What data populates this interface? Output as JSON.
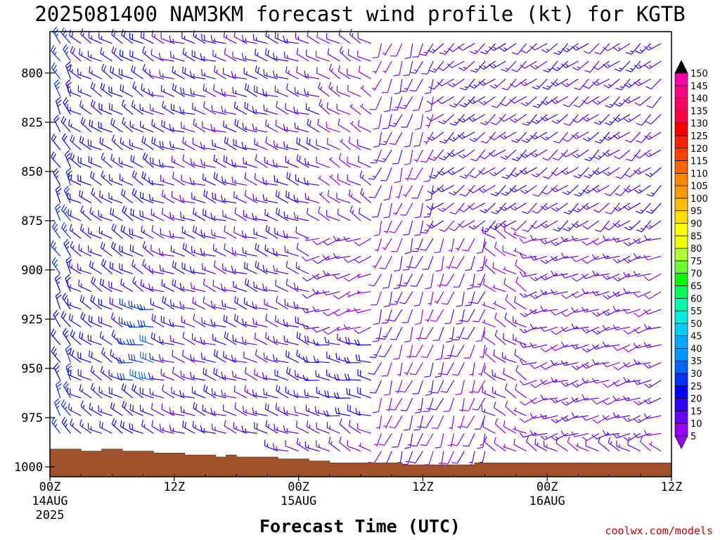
{
  "chart_data": {
    "type": "wind-barb",
    "title": "2025081400 NAM3KM forecast wind profile (kt) for KGTB",
    "xlabel": "Forecast Time (UTC)",
    "credit": "coolwx.com/models",
    "x_ticks": [
      {
        "hour": 0,
        "label": "00Z",
        "date": "14AUG",
        "year": "2025"
      },
      {
        "hour": 12,
        "label": "12Z",
        "date": "",
        "year": ""
      },
      {
        "hour": 24,
        "label": "00Z",
        "date": "15AUG",
        "year": ""
      },
      {
        "hour": 36,
        "label": "12Z",
        "date": "",
        "year": ""
      },
      {
        "hour": 48,
        "label": "00Z",
        "date": "16AUG",
        "year": ""
      },
      {
        "hour": 60,
        "label": "12Z",
        "date": "",
        "year": ""
      }
    ],
    "y_ticks": [
      {
        "value": 800,
        "label": "800"
      },
      {
        "value": 825,
        "label": "825"
      },
      {
        "value": 850,
        "label": "850"
      },
      {
        "value": 875,
        "label": "875"
      },
      {
        "value": 900,
        "label": "900"
      },
      {
        "value": 925,
        "label": "925"
      },
      {
        "value": 950,
        "label": "950"
      },
      {
        "value": 975,
        "label": "975"
      },
      {
        "value": 1000,
        "label": "1000"
      }
    ],
    "xlim": [
      0,
      60
    ],
    "ylim": [
      779,
      1005
    ],
    "y_axis": "pressure (mb), decreasing upward",
    "colorbar": {
      "unit": "kt",
      "values": [
        5,
        10,
        15,
        20,
        25,
        30,
        35,
        40,
        45,
        50,
        55,
        60,
        65,
        70,
        75,
        80,
        85,
        90,
        95,
        100,
        105,
        110,
        115,
        120,
        125,
        130,
        135,
        140,
        145,
        150
      ],
      "labels": [
        "5",
        "10",
        "15",
        "20",
        "25",
        "30",
        "35",
        "40",
        "45",
        "50",
        "55",
        "60",
        "65",
        "70",
        "75",
        "80",
        "85",
        "90",
        "95",
        "100",
        "105",
        "110",
        "115",
        "120",
        "125",
        "130",
        "135",
        "140",
        "145",
        "150"
      ],
      "colors": [
        "#9900ff",
        "#6600ff",
        "#3300ff",
        "#0000ff",
        "#0033ff",
        "#0066ff",
        "#0099ff",
        "#00aaff",
        "#00ccff",
        "#00eedd",
        "#00ffaa",
        "#00ff55",
        "#00ff00",
        "#66ff33",
        "#aaff33",
        "#eeff00",
        "#ffff00",
        "#ffdd00",
        "#ffbb00",
        "#ff9900",
        "#ff8800",
        "#ff6600",
        "#ff4400",
        "#ff2200",
        "#ff0000",
        "#ff0044",
        "#ff0066",
        "#ff0088",
        "#ff00aa",
        "#ff00cc"
      ]
    },
    "time_step_hours": 1,
    "levels_mb": [
      785,
      794,
      803,
      812,
      821,
      830,
      839,
      848,
      857,
      866,
      875,
      884,
      893,
      902,
      911,
      920,
      929,
      938,
      947,
      956,
      965,
      974,
      983,
      992
    ],
    "surface_pressure_mb": [
      {
        "hour": 0,
        "mb": 991
      },
      {
        "hour": 3,
        "mb": 992
      },
      {
        "hour": 5,
        "mb": 991
      },
      {
        "hour": 7,
        "mb": 992
      },
      {
        "hour": 10,
        "mb": 993
      },
      {
        "hour": 13,
        "mb": 994
      },
      {
        "hour": 16,
        "mb": 995
      },
      {
        "hour": 17,
        "mb": 994
      },
      {
        "hour": 18,
        "mb": 995
      },
      {
        "hour": 22,
        "mb": 996
      },
      {
        "hour": 25,
        "mb": 997
      },
      {
        "hour": 27,
        "mb": 998
      },
      {
        "hour": 31,
        "mb": 998
      },
      {
        "hour": 34,
        "mb": 999
      },
      {
        "hour": 37,
        "mb": 999
      },
      {
        "hour": 41,
        "mb": 998
      },
      {
        "hour": 44,
        "mb": 998
      },
      {
        "hour": 47,
        "mb": 998
      },
      {
        "hour": 53,
        "mb": 998
      },
      {
        "hour": 60,
        "mb": 997
      }
    ],
    "wind_regimes": [
      {
        "hours": [
          0,
          2
        ],
        "levels": "all",
        "dir_deg": 330,
        "speed_kt": 24
      },
      {
        "hours": [
          3,
          10
        ],
        "levels": "all",
        "dir_deg": 300,
        "speed_kt": 18
      },
      {
        "hours": [
          8,
          20
        ],
        "levels": "920-960",
        "dir_deg": 280,
        "speed_kt": 28
      },
      {
        "hours": [
          11,
          26
        ],
        "levels": "all",
        "dir_deg": 290,
        "speed_kt": 15
      },
      {
        "hours": [
          26,
          31
        ],
        "levels": "880-930",
        "dir_deg": 250,
        "speed_kt": 10
      },
      {
        "hours": [
          26,
          34
        ],
        "levels": "930-980",
        "dir_deg": 280,
        "speed_kt": 18
      },
      {
        "hours": [
          32,
          42
        ],
        "levels": "all",
        "dir_deg": 200,
        "speed_kt": 10
      },
      {
        "hours": [
          38,
          60
        ],
        "levels": "785-880",
        "dir_deg": 230,
        "speed_kt": 14
      },
      {
        "hours": [
          47,
          60
        ],
        "levels": "880-990",
        "dir_deg": 250,
        "speed_kt": 12
      }
    ]
  }
}
